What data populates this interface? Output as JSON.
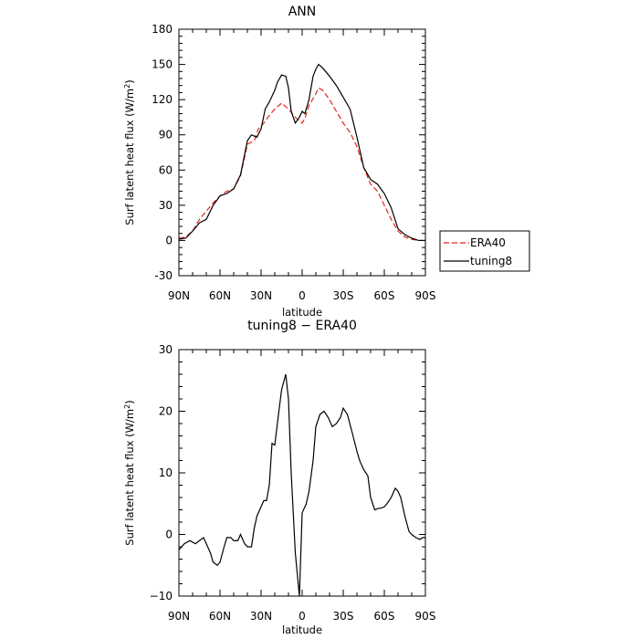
{
  "chart_data": [
    {
      "type": "line",
      "title": "ANN",
      "xlabel": "latitude",
      "ylabel": "Surf latent heat flux (W/m",
      "ylabel_sup": "2",
      "ylabel_close": ")",
      "xlim": [
        90,
        -90
      ],
      "ylim": [
        -30,
        180
      ],
      "xticks": [
        90,
        60,
        30,
        0,
        -30,
        -60,
        -90
      ],
      "xtick_labels": [
        "90N",
        "60N",
        "30N",
        "0",
        "30S",
        "60S",
        "90S"
      ],
      "yticks": [
        -30,
        0,
        30,
        60,
        90,
        120,
        150,
        180
      ],
      "ytick_labels": [
        "-30",
        "0",
        "30",
        "60",
        "90",
        "120",
        "150",
        "180"
      ],
      "legend": "right",
      "series": [
        {
          "name": "ERA40",
          "color": "#e8221b",
          "dash": "dashed",
          "x": [
            90,
            85,
            80,
            75,
            70,
            65,
            60,
            55,
            50,
            45,
            40,
            35,
            32,
            28,
            25,
            20,
            15,
            10,
            5,
            2,
            0,
            -2,
            -5,
            -10,
            -12,
            -15,
            -20,
            -25,
            -30,
            -35,
            -40,
            -45,
            -50,
            -55,
            -60,
            -65,
            -70,
            -75,
            -80,
            -85,
            -90
          ],
          "y": [
            2,
            3,
            8,
            18,
            25,
            32,
            38,
            42,
            44,
            55,
            82,
            85,
            95,
            100,
            105,
            112,
            117,
            112,
            105,
            102,
            100,
            104,
            115,
            125,
            130,
            128,
            120,
            110,
            100,
            92,
            80,
            62,
            48,
            42,
            30,
            18,
            8,
            3,
            1,
            0,
            0
          ]
        },
        {
          "name": "tuning8",
          "color": "#000000",
          "dash": "solid",
          "x": [
            90,
            85,
            80,
            75,
            70,
            65,
            60,
            55,
            50,
            45,
            40,
            37,
            33,
            30,
            27,
            24,
            20,
            18,
            15,
            12,
            10,
            8,
            5,
            2,
            0,
            -2,
            -5,
            -8,
            -10,
            -12,
            -15,
            -20,
            -25,
            -30,
            -35,
            -40,
            -45,
            -50,
            -55,
            -60,
            -65,
            -70,
            -75,
            -80,
            -85,
            -90
          ],
          "y": [
            1,
            2,
            8,
            15,
            18,
            30,
            38,
            40,
            44,
            56,
            85,
            90,
            88,
            95,
            112,
            118,
            128,
            135,
            141,
            140,
            130,
            110,
            100,
            105,
            110,
            108,
            120,
            140,
            146,
            150,
            147,
            140,
            132,
            122,
            112,
            88,
            62,
            52,
            48,
            40,
            28,
            10,
            5,
            2,
            0,
            0
          ]
        }
      ]
    },
    {
      "type": "line",
      "title": "tuning8 − ERA40",
      "xlabel": "latitude",
      "ylabel": "Surf latent heat flux (W/m",
      "ylabel_sup": "2",
      "ylabel_close": ")",
      "xlim": [
        90,
        -90
      ],
      "ylim": [
        -10,
        30
      ],
      "xticks": [
        90,
        60,
        30,
        0,
        -30,
        -60,
        -90
      ],
      "xtick_labels": [
        "90N",
        "60N",
        "30N",
        "0",
        "30S",
        "60S",
        "90S"
      ],
      "yticks": [
        -10,
        0,
        10,
        20,
        30
      ],
      "ytick_labels": [
        "−10",
        "0",
        "10",
        "20",
        "30"
      ],
      "series": [
        {
          "name": "",
          "color": "#000000",
          "dash": "solid",
          "x": [
            90,
            86,
            82,
            78,
            75,
            72,
            70,
            67,
            65,
            62,
            60,
            57,
            55,
            52,
            50,
            47,
            45,
            42,
            40,
            37,
            35,
            33,
            30,
            28,
            26,
            24,
            22,
            20,
            17,
            15,
            12,
            10,
            8,
            5,
            2,
            0,
            -3,
            -5,
            -8,
            -10,
            -13,
            -16,
            -19,
            -22,
            -25,
            -28,
            -30,
            -33,
            -36,
            -40,
            -42,
            -45,
            -48,
            -50,
            -53,
            -55,
            -58,
            -60,
            -62,
            -65,
            -68,
            -70,
            -72,
            -75,
            -78,
            -80,
            -83,
            -86,
            -88,
            -90
          ],
          "y": [
            -2.5,
            -1.5,
            -1,
            -1.5,
            -1,
            -0.5,
            -1.5,
            -3,
            -4.5,
            -5,
            -4.5,
            -2,
            -0.5,
            -0.5,
            -1,
            -1,
            0,
            -1.5,
            -2,
            -2,
            1,
            3,
            4.5,
            5.5,
            5.5,
            8,
            14.8,
            14.5,
            20,
            23.5,
            26,
            22,
            10,
            -3,
            -10,
            3.5,
            5,
            7,
            12,
            17.5,
            19.5,
            20,
            19,
            17.5,
            18,
            19,
            20.5,
            19.5,
            17,
            13.5,
            12,
            10.5,
            9.5,
            6,
            4,
            4.2,
            4.3,
            4.5,
            5,
            6,
            7.5,
            7,
            6,
            3,
            0.5,
            0,
            -0.5,
            -0.8,
            -0.5,
            -0.5
          ]
        }
      ]
    }
  ]
}
